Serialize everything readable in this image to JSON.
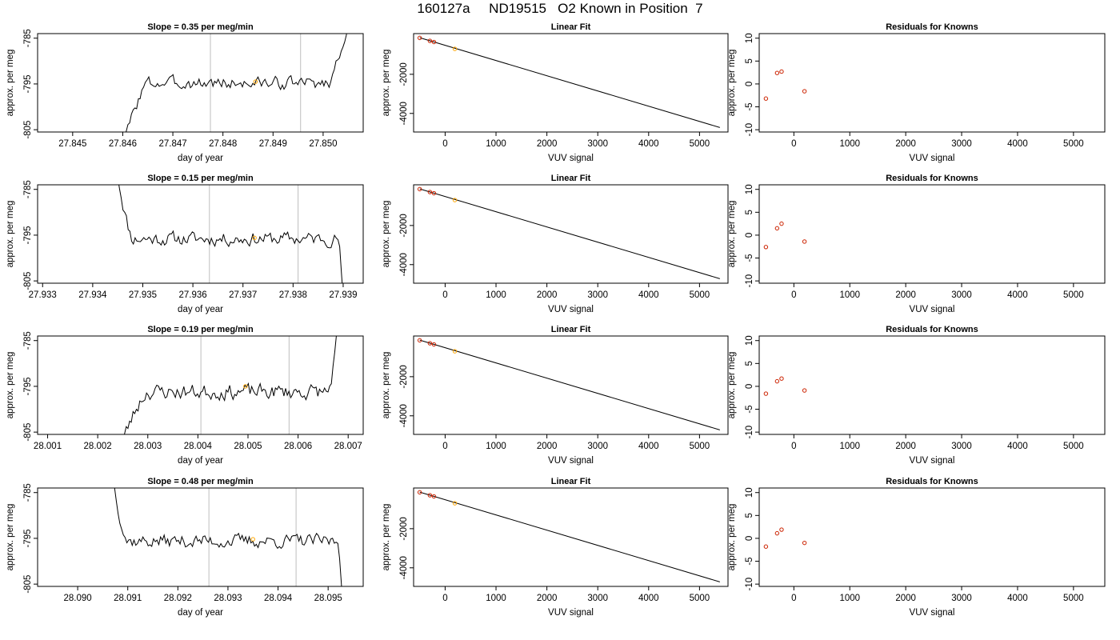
{
  "figure": {
    "title": "160127a     ND19515   O2 Known in Position  7"
  },
  "colors": {
    "trace": "#000000",
    "marker_orange": "#ffa500",
    "marker_red": "#cc2200",
    "cycle_lines": "#bebebe"
  },
  "chart_data": [
    {
      "type": "line",
      "panel": "time-series",
      "row": 1,
      "title": "Slope =  0.35  per meg/min",
      "xlabel": "day of year",
      "ylabel": "approx. per meg",
      "xlim": [
        27.8443,
        27.8508
      ],
      "ylim": [
        -805.5,
        -784.0
      ],
      "x_ticks": [
        "27.845",
        "27.846",
        "27.847",
        "27.848",
        "27.849",
        "27.850"
      ],
      "x_tick_values": [
        27.845,
        27.846,
        27.847,
        27.848,
        27.849,
        27.85
      ],
      "y_ticks": [
        "-785",
        "-795",
        "-805"
      ],
      "y_tick_values": [
        -785,
        -795,
        -805
      ],
      "x_range": [
        27.846,
        27.8505
      ],
      "flat_start": 27.8465,
      "flat_end": 27.8501,
      "level": -794.8,
      "amplitude": 1.5,
      "seed": 3,
      "enter_from": "bottom",
      "exit_to": "top",
      "cycle_lines": [
        27.84775,
        27.84955
      ],
      "marker": {
        "x": 27.84865,
        "y": -794.5
      }
    },
    {
      "type": "scatter",
      "panel": "linear-fit",
      "row": 1,
      "title": "Linear Fit",
      "xlabel": "VUV signal",
      "ylabel": "approx. per meg",
      "xlim": [
        -620,
        5560
      ],
      "ylim": [
        -4950,
        80
      ],
      "x_ticks": [
        "0",
        "1000",
        "2000",
        "3000",
        "4000",
        "5000"
      ],
      "x_tick_values": [
        0,
        1000,
        2000,
        3000,
        4000,
        5000
      ],
      "y_ticks": [
        "-2000",
        "-4000"
      ],
      "y_tick_values": [
        -2000,
        -4000
      ],
      "fit_line": {
        "x": [
          -500,
          5400
        ],
        "y": [
          -130,
          -4720
        ]
      },
      "points": [
        {
          "x": -500,
          "y": -140
        },
        {
          "x": -300,
          "y": -290
        },
        {
          "x": -220,
          "y": -350
        },
        {
          "x": 190,
          "y": -700
        }
      ],
      "point_colors": [
        "red",
        "red",
        "red",
        "orange"
      ]
    },
    {
      "type": "scatter",
      "panel": "residuals",
      "row": 1,
      "title": "Residuals for Knowns",
      "xlabel": "VUV signal",
      "ylabel": "approx. per meg",
      "xlim": [
        -620,
        5560
      ],
      "ylim": [
        -10.5,
        11
      ],
      "x_ticks": [
        "0",
        "1000",
        "2000",
        "3000",
        "4000",
        "5000"
      ],
      "x_tick_values": [
        0,
        1000,
        2000,
        3000,
        4000,
        5000
      ],
      "y_ticks": [
        "10",
        "5",
        "0",
        "-5",
        "-10"
      ],
      "y_tick_values": [
        10,
        5,
        0,
        -5,
        -10
      ],
      "points": [
        {
          "x": -500,
          "y": -3.2
        },
        {
          "x": -300,
          "y": 2.4
        },
        {
          "x": -220,
          "y": 2.7
        },
        {
          "x": 190,
          "y": -1.6
        }
      ]
    },
    {
      "type": "line",
      "panel": "time-series",
      "row": 2,
      "title": "Slope =  0.15  per meg/min",
      "xlabel": "day of year",
      "ylabel": "approx. per meg",
      "xlim": [
        27.9329,
        27.9394
      ],
      "ylim": [
        -805.5,
        -784.0
      ],
      "x_ticks": [
        "27.933",
        "27.934",
        "27.935",
        "27.936",
        "27.937",
        "27.938",
        "27.939"
      ],
      "x_tick_values": [
        27.933,
        27.934,
        27.935,
        27.936,
        27.937,
        27.938,
        27.939
      ],
      "y_ticks": [
        "-785",
        "-795",
        "-805"
      ],
      "y_tick_values": [
        -785,
        -795,
        -805
      ],
      "x_range": [
        27.9345,
        27.939
      ],
      "flat_start": 27.9348,
      "flat_end": 27.9389,
      "level": -795.8,
      "amplitude": 1.6,
      "seed": 11,
      "enter_from": "top",
      "exit_to": "bottom",
      "cycle_lines": [
        27.93633,
        27.9381
      ],
      "marker": {
        "x": 27.93723,
        "y": -795.6
      }
    },
    {
      "type": "scatter",
      "panel": "linear-fit",
      "row": 2,
      "title": "Linear Fit",
      "xlabel": "VUV signal",
      "ylabel": "approx. per meg",
      "xlim": [
        -620,
        5560
      ],
      "ylim": [
        -4950,
        80
      ],
      "x_ticks": [
        "0",
        "1000",
        "2000",
        "3000",
        "4000",
        "5000"
      ],
      "x_tick_values": [
        0,
        1000,
        2000,
        3000,
        4000,
        5000
      ],
      "y_ticks": [
        "-2000",
        "-4000"
      ],
      "y_tick_values": [
        -2000,
        -4000
      ],
      "fit_line": {
        "x": [
          -500,
          5400
        ],
        "y": [
          -130,
          -4720
        ]
      },
      "points": [
        {
          "x": -500,
          "y": -140
        },
        {
          "x": -300,
          "y": -290
        },
        {
          "x": -220,
          "y": -350
        },
        {
          "x": 190,
          "y": -700
        }
      ],
      "point_colors": [
        "red",
        "red",
        "red",
        "orange"
      ]
    },
    {
      "type": "scatter",
      "panel": "residuals",
      "row": 2,
      "title": "Residuals for Knowns",
      "xlabel": "VUV signal",
      "ylabel": "approx. per meg",
      "xlim": [
        -620,
        5560
      ],
      "ylim": [
        -10.5,
        11
      ],
      "x_ticks": [
        "0",
        "1000",
        "2000",
        "3000",
        "4000",
        "5000"
      ],
      "x_tick_values": [
        0,
        1000,
        2000,
        3000,
        4000,
        5000
      ],
      "y_ticks": [
        "10",
        "5",
        "0",
        "-5",
        "-10"
      ],
      "y_tick_values": [
        10,
        5,
        0,
        -5,
        -10
      ],
      "points": [
        {
          "x": -500,
          "y": -2.6
        },
        {
          "x": -300,
          "y": 1.5
        },
        {
          "x": -220,
          "y": 2.5
        },
        {
          "x": 190,
          "y": -1.4
        }
      ]
    },
    {
      "type": "line",
      "panel": "time-series",
      "row": 3,
      "title": "Slope =  0.19  per meg/min",
      "xlabel": "day of year",
      "ylabel": "approx. per meg",
      "xlim": [
        28.0008,
        28.0073
      ],
      "ylim": [
        -805.5,
        -784.0
      ],
      "x_ticks": [
        "28.001",
        "28.002",
        "28.003",
        "28.004",
        "28.005",
        "28.006",
        "28.007"
      ],
      "x_tick_values": [
        28.001,
        28.002,
        28.003,
        28.004,
        28.005,
        28.006,
        28.007
      ],
      "y_ticks": [
        "-785",
        "-795",
        "-805"
      ],
      "y_tick_values": [
        -785,
        -795,
        -805
      ],
      "x_range": [
        28.0024,
        28.0068
      ],
      "flat_start": 28.003,
      "flat_end": 28.0066,
      "level": -796.2,
      "amplitude": 1.8,
      "seed": 23,
      "enter_from": "bottom",
      "exit_to": "top",
      "cycle_lines": [
        28.00406,
        28.00582
      ],
      "marker": {
        "x": 28.00495,
        "y": -795.0
      }
    },
    {
      "type": "scatter",
      "panel": "linear-fit",
      "row": 3,
      "title": "Linear Fit",
      "xlabel": "VUV signal",
      "ylabel": "approx. per meg",
      "xlim": [
        -620,
        5560
      ],
      "ylim": [
        -4950,
        80
      ],
      "x_ticks": [
        "0",
        "1000",
        "2000",
        "3000",
        "4000",
        "5000"
      ],
      "x_tick_values": [
        0,
        1000,
        2000,
        3000,
        4000,
        5000
      ],
      "y_ticks": [
        "-2000",
        "-4000"
      ],
      "y_tick_values": [
        -2000,
        -4000
      ],
      "fit_line": {
        "x": [
          -500,
          5400
        ],
        "y": [
          -130,
          -4720
        ]
      },
      "points": [
        {
          "x": -500,
          "y": -140
        },
        {
          "x": -300,
          "y": -290
        },
        {
          "x": -220,
          "y": -350
        },
        {
          "x": 190,
          "y": -700
        }
      ],
      "point_colors": [
        "red",
        "red",
        "red",
        "orange"
      ]
    },
    {
      "type": "scatter",
      "panel": "residuals",
      "row": 3,
      "title": "Residuals for Knowns",
      "xlabel": "VUV signal",
      "ylabel": "approx. per meg",
      "xlim": [
        -620,
        5560
      ],
      "ylim": [
        -10.5,
        11
      ],
      "x_ticks": [
        "0",
        "1000",
        "2000",
        "3000",
        "4000",
        "5000"
      ],
      "x_tick_values": [
        0,
        1000,
        2000,
        3000,
        4000,
        5000
      ],
      "y_ticks": [
        "10",
        "5",
        "0",
        "-5",
        "-10"
      ],
      "y_tick_values": [
        10,
        5,
        0,
        -5,
        -10
      ],
      "points": [
        {
          "x": -500,
          "y": -1.6
        },
        {
          "x": -300,
          "y": 1.1
        },
        {
          "x": -220,
          "y": 1.7
        },
        {
          "x": 190,
          "y": -0.9
        }
      ]
    },
    {
      "type": "line",
      "panel": "time-series",
      "row": 4,
      "title": "Slope =  0.48  per meg/min",
      "xlabel": "day of year",
      "ylabel": "approx. per meg",
      "xlim": [
        28.0892,
        28.0957
      ],
      "ylim": [
        -805.5,
        -784.0
      ],
      "x_ticks": [
        "28.090",
        "28.091",
        "28.092",
        "28.093",
        "28.094",
        "28.095"
      ],
      "x_tick_values": [
        28.09,
        28.091,
        28.092,
        28.093,
        28.094,
        28.095
      ],
      "y_ticks": [
        "-785",
        "-795",
        "-805"
      ],
      "y_tick_values": [
        -785,
        -795,
        -805
      ],
      "x_range": [
        28.0907,
        28.0953
      ],
      "flat_start": 28.091,
      "flat_end": 28.0952,
      "level": -795.6,
      "amplitude": 1.6,
      "seed": 37,
      "enter_from": "top",
      "exit_to": "bottom",
      "cycle_lines": [
        28.09262,
        28.09436
      ],
      "marker": {
        "x": 28.0935,
        "y": -795.2
      }
    },
    {
      "type": "scatter",
      "panel": "linear-fit",
      "row": 4,
      "title": "Linear Fit",
      "xlabel": "VUV signal",
      "ylabel": "approx. per meg",
      "xlim": [
        -620,
        5560
      ],
      "ylim": [
        -4950,
        80
      ],
      "x_ticks": [
        "0",
        "1000",
        "2000",
        "3000",
        "4000",
        "5000"
      ],
      "x_tick_values": [
        0,
        1000,
        2000,
        3000,
        4000,
        5000
      ],
      "y_ticks": [
        "-2000",
        "-4000"
      ],
      "y_tick_values": [
        -2000,
        -4000
      ],
      "fit_line": {
        "x": [
          -500,
          5400
        ],
        "y": [
          -130,
          -4720
        ]
      },
      "points": [
        {
          "x": -500,
          "y": -140
        },
        {
          "x": -300,
          "y": -290
        },
        {
          "x": -220,
          "y": -350
        },
        {
          "x": 190,
          "y": -700
        }
      ],
      "point_colors": [
        "red",
        "red",
        "red",
        "orange"
      ]
    },
    {
      "type": "scatter",
      "panel": "residuals",
      "row": 4,
      "title": "Residuals for Knowns",
      "xlabel": "VUV signal",
      "ylabel": "approx. per meg",
      "xlim": [
        -620,
        5560
      ],
      "ylim": [
        -10.5,
        11
      ],
      "x_ticks": [
        "0",
        "1000",
        "2000",
        "3000",
        "4000",
        "5000"
      ],
      "x_tick_values": [
        0,
        1000,
        2000,
        3000,
        4000,
        5000
      ],
      "y_ticks": [
        "10",
        "5",
        "0",
        "-5",
        "-10"
      ],
      "y_tick_values": [
        10,
        5,
        0,
        -5,
        -10
      ],
      "points": [
        {
          "x": -500,
          "y": -1.8
        },
        {
          "x": -300,
          "y": 1.1
        },
        {
          "x": -220,
          "y": 1.9
        },
        {
          "x": 190,
          "y": -1.0
        }
      ]
    }
  ]
}
